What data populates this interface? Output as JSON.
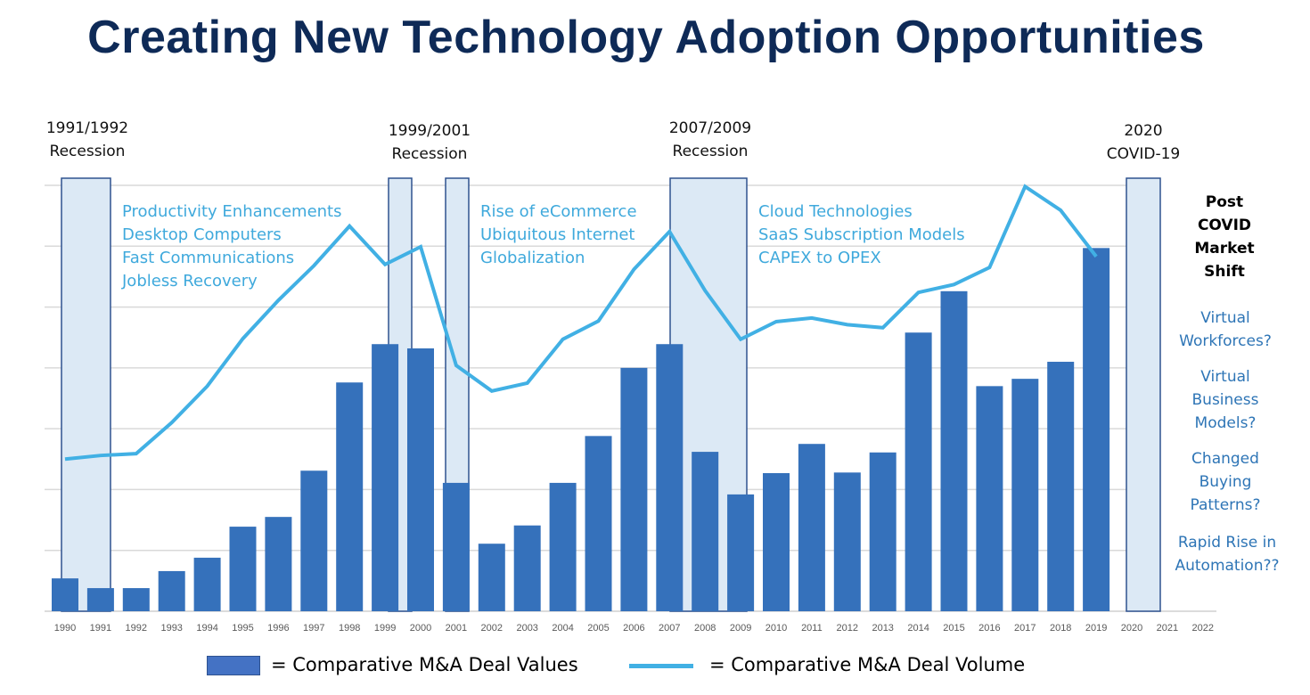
{
  "title": "Creating New Technology Adoption Opportunities",
  "chart_data": {
    "type": "bar+line",
    "title": "Creating New Technology Adoption Opportunities",
    "xlabel": "",
    "ylabel": "",
    "ylim": [
      0,
      7
    ],
    "grid": true,
    "categories": [
      "1990",
      "1991",
      "1992",
      "1993",
      "1994",
      "1995",
      "1996",
      "1997",
      "1998",
      "1999",
      "2000",
      "2001",
      "2002",
      "2003",
      "2004",
      "2005",
      "2006",
      "2007",
      "2008",
      "2009",
      "2010",
      "2011",
      "2012",
      "2013",
      "2014",
      "2015",
      "2016",
      "2017",
      "2018",
      "2019",
      "2020",
      "2021",
      "2022"
    ],
    "series": [
      {
        "name": "Comparative M&A Deal Values",
        "type": "bar",
        "color": "#3571bb",
        "values": [
          0.54,
          0.38,
          0.38,
          0.66,
          0.88,
          1.39,
          1.55,
          2.31,
          3.76,
          4.39,
          4.32,
          2.11,
          1.11,
          1.41,
          2.11,
          2.88,
          4.0,
          4.39,
          2.62,
          1.92,
          2.27,
          2.75,
          2.28,
          2.61,
          4.58,
          5.26,
          3.7,
          3.82,
          4.1,
          5.97,
          null,
          null,
          null
        ]
      },
      {
        "name": "Comparative M&A Deal Volume",
        "type": "line",
        "color": "#41b0e4",
        "values": [
          2.5,
          2.56,
          2.59,
          3.1,
          3.7,
          4.48,
          5.11,
          5.68,
          6.33,
          5.7,
          5.99,
          4.04,
          3.62,
          3.75,
          4.47,
          4.77,
          5.62,
          6.24,
          5.27,
          4.47,
          4.76,
          4.82,
          4.71,
          4.66,
          5.24,
          5.37,
          5.65,
          6.98,
          6.59,
          5.83,
          null,
          null,
          null
        ]
      }
    ],
    "shaded_periods": [
      {
        "label_line1": "1991/1992",
        "label_line2": "Recession",
        "from": "1990",
        "to": "1991"
      },
      {
        "label_line1": "1999/2001",
        "label_line2": "Recession",
        "from": "1999",
        "to": "1999"
      },
      {
        "label_line1": "",
        "label_line2": "",
        "from": "2001",
        "to": "2001"
      },
      {
        "label_line1": "2007/2009",
        "label_line2": "Recession",
        "from": "2007",
        "to": "2009"
      },
      {
        "label_line1": "2020",
        "label_line2": "COVID-19",
        "from": "2020",
        "to": "2020"
      }
    ],
    "annotations": [
      {
        "lines": [
          "Productivity Enhancements",
          "Desktop Computers",
          "Fast Communications",
          "Jobless Recovery"
        ]
      },
      {
        "lines": [
          "Rise of eCommerce",
          "Ubiquitous Internet",
          "Globalization"
        ]
      },
      {
        "lines": [
          "Cloud Technologies",
          "SaaS Subscription Models",
          "CAPEX to OPEX"
        ]
      }
    ],
    "legend": [
      {
        "label": "= Comparative M&A Deal Values",
        "kind": "bar"
      },
      {
        "label": "= Comparative M&A Deal Volume",
        "kind": "line"
      }
    ],
    "legend_position": "bottom"
  },
  "side_panel": {
    "heading": [
      "Post",
      "COVID",
      "Market",
      "Shift"
    ],
    "questions": [
      [
        "Virtual",
        "Workforces?"
      ],
      [
        "Virtual",
        "Business",
        "Models?"
      ],
      [
        "Changed",
        "Buying",
        "Patterns?"
      ],
      [
        "Rapid Rise in",
        "Automation??"
      ]
    ]
  },
  "colors": {
    "title": "#0e2a57",
    "bar": "#3571bb",
    "line": "#41b0e4",
    "shade_fill": "#dce9f5",
    "shade_stroke": "#2f528f",
    "annotation": "#3fa9dc",
    "side_question": "#2e75b6"
  }
}
